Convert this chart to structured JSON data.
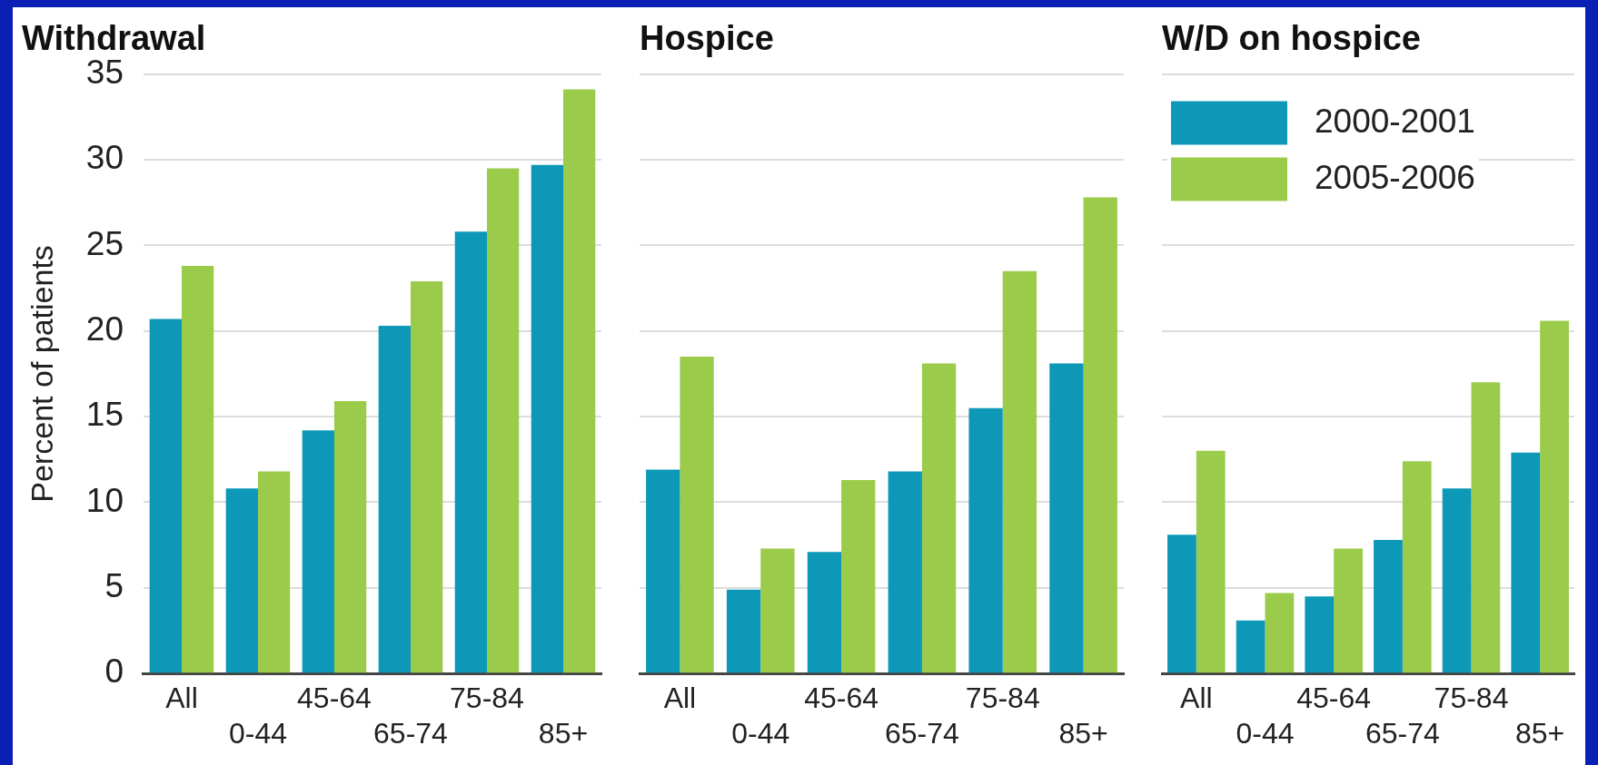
{
  "chart_data": [
    {
      "type": "bar",
      "title": "Withdrawal",
      "ylabel": "Percent of patients",
      "categories": [
        "All",
        "0-44",
        "45-64",
        "65-74",
        "75-84",
        "85+"
      ],
      "series": [
        {
          "color": "#0d98b8",
          "values": [
            20.7,
            10.8,
            14.2,
            20.3,
            25.8,
            29.7
          ]
        },
        {
          "color": "#9bcb4a",
          "values": [
            23.8,
            11.8,
            15.9,
            22.9,
            29.5,
            34.1
          ]
        }
      ],
      "ylim": [
        0,
        35
      ],
      "yticks": [
        0,
        5,
        10,
        15,
        20,
        25,
        30,
        35
      ],
      "grid": "y",
      "legend": false
    },
    {
      "type": "bar",
      "title": "Hospice",
      "categories": [
        "All",
        "0-44",
        "45-64",
        "65-74",
        "75-84",
        "85+"
      ],
      "series": [
        {
          "color": "#0d98b8",
          "values": [
            11.9,
            4.9,
            7.1,
            11.8,
            15.5,
            18.1
          ]
        },
        {
          "color": "#9bcb4a",
          "values": [
            18.5,
            7.3,
            11.3,
            18.1,
            23.5,
            27.8
          ]
        }
      ],
      "ylim": [
        0,
        35
      ],
      "yticks": [
        0,
        5,
        10,
        15,
        20,
        25,
        30,
        35
      ],
      "grid": "y",
      "legend": false,
      "tick_labels": "x"
    },
    {
      "type": "bar",
      "title": "W/D on hospice",
      "categories": [
        "All",
        "0-44",
        "45-64",
        "65-74",
        "75-84",
        "85+"
      ],
      "series": [
        {
          "name": "2000-2001",
          "color": "#0d98b8",
          "values": [
            8.1,
            3.1,
            4.5,
            7.8,
            10.8,
            12.9
          ]
        },
        {
          "name": "2005-2006",
          "color": "#9bcb4a",
          "values": [
            13.0,
            4.7,
            7.3,
            12.4,
            17.0,
            20.6
          ]
        }
      ],
      "ylim": [
        0,
        35
      ],
      "yticks": [
        0,
        5,
        10,
        15,
        20,
        25,
        30,
        35
      ],
      "grid": "y",
      "legend": "top left",
      "tick_labels": "x"
    }
  ]
}
